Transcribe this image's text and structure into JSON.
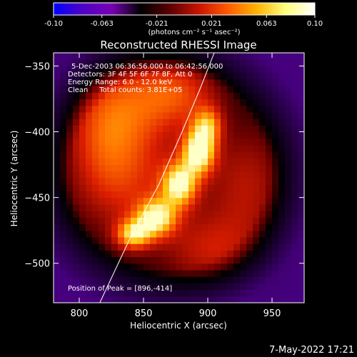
{
  "colorbar": {
    "ticks": [
      "-0.10",
      "-0.063",
      "-0.021",
      "0.021",
      "0.063",
      "0.10"
    ],
    "range": [
      -0.1,
      0.1
    ],
    "units": "(photons cm⁻² s⁻¹ asec⁻²)",
    "colors": [
      "#0000ff",
      "#5000c8",
      "#7800b4",
      "#000000",
      "#5a0000",
      "#c81400",
      "#ff5a00",
      "#ffb400",
      "#ffff80",
      "#ffffff"
    ]
  },
  "chart_data": {
    "type": "heatmap",
    "title": "Reconstructed RHESSI Image",
    "xlabel": "Heliocentric X (arcsec)",
    "ylabel": "Heliocentric Y (arcsec)",
    "xlim": [
      780,
      975
    ],
    "ylim": [
      -530,
      -340
    ],
    "x_ticks": [
      800,
      850,
      900,
      950
    ],
    "y_ticks": [
      -350,
      -400,
      -450,
      -500
    ],
    "x_tick_labels": [
      "800",
      "850",
      "900",
      "950"
    ],
    "y_tick_labels": [
      "−350",
      "−400",
      "−450",
      "−500"
    ],
    "info_lines": [
      "5-Dec-2003 06:36:56.000 to 06:42:56.000",
      "Detectors: 3F 4F 5F 6F 7F 8F, Att 0",
      "Energy Range: 6.0 - 12.0 keV",
      "Clean     Total counts: 3.81E+05"
    ],
    "peak_text": "Position of Peak = [896,-414]",
    "peak": [
      896,
      -414
    ],
    "limb_curve": [
      [
        816,
        -530
      ],
      [
        840,
        -480
      ],
      [
        862,
        -440
      ],
      [
        880,
        -400
      ],
      [
        895,
        -365
      ],
      [
        905,
        -340
      ]
    ],
    "source_blobs": [
      {
        "x": 893,
        "y": -415,
        "sx": 9,
        "sy": 12,
        "amp": 0.95
      },
      {
        "x": 878,
        "y": -440,
        "sx": 10,
        "sy": 12,
        "amp": 0.85
      },
      {
        "x": 860,
        "y": -465,
        "sx": 11,
        "sy": 10,
        "amp": 0.8
      },
      {
        "x": 842,
        "y": -478,
        "sx": 10,
        "sy": 8,
        "amp": 0.7
      },
      {
        "x": 900,
        "y": -395,
        "sx": 8,
        "sy": 10,
        "amp": 0.55
      },
      {
        "x": 840,
        "y": -380,
        "sx": 28,
        "sy": 30,
        "amp": 0.45
      },
      {
        "x": 880,
        "y": -370,
        "sx": 22,
        "sy": 18,
        "amp": 0.4
      },
      {
        "x": 930,
        "y": -440,
        "sx": 24,
        "sy": 34,
        "amp": 0.35
      },
      {
        "x": 835,
        "y": -440,
        "sx": 30,
        "sy": 30,
        "amp": 0.4
      },
      {
        "x": 900,
        "y": -490,
        "sx": 28,
        "sy": 20,
        "amp": 0.35
      },
      {
        "x": 815,
        "y": -400,
        "sx": 20,
        "sy": 30,
        "amp": 0.25
      }
    ]
  },
  "footer": {
    "timestamp": "7-May-2022 17:21"
  }
}
